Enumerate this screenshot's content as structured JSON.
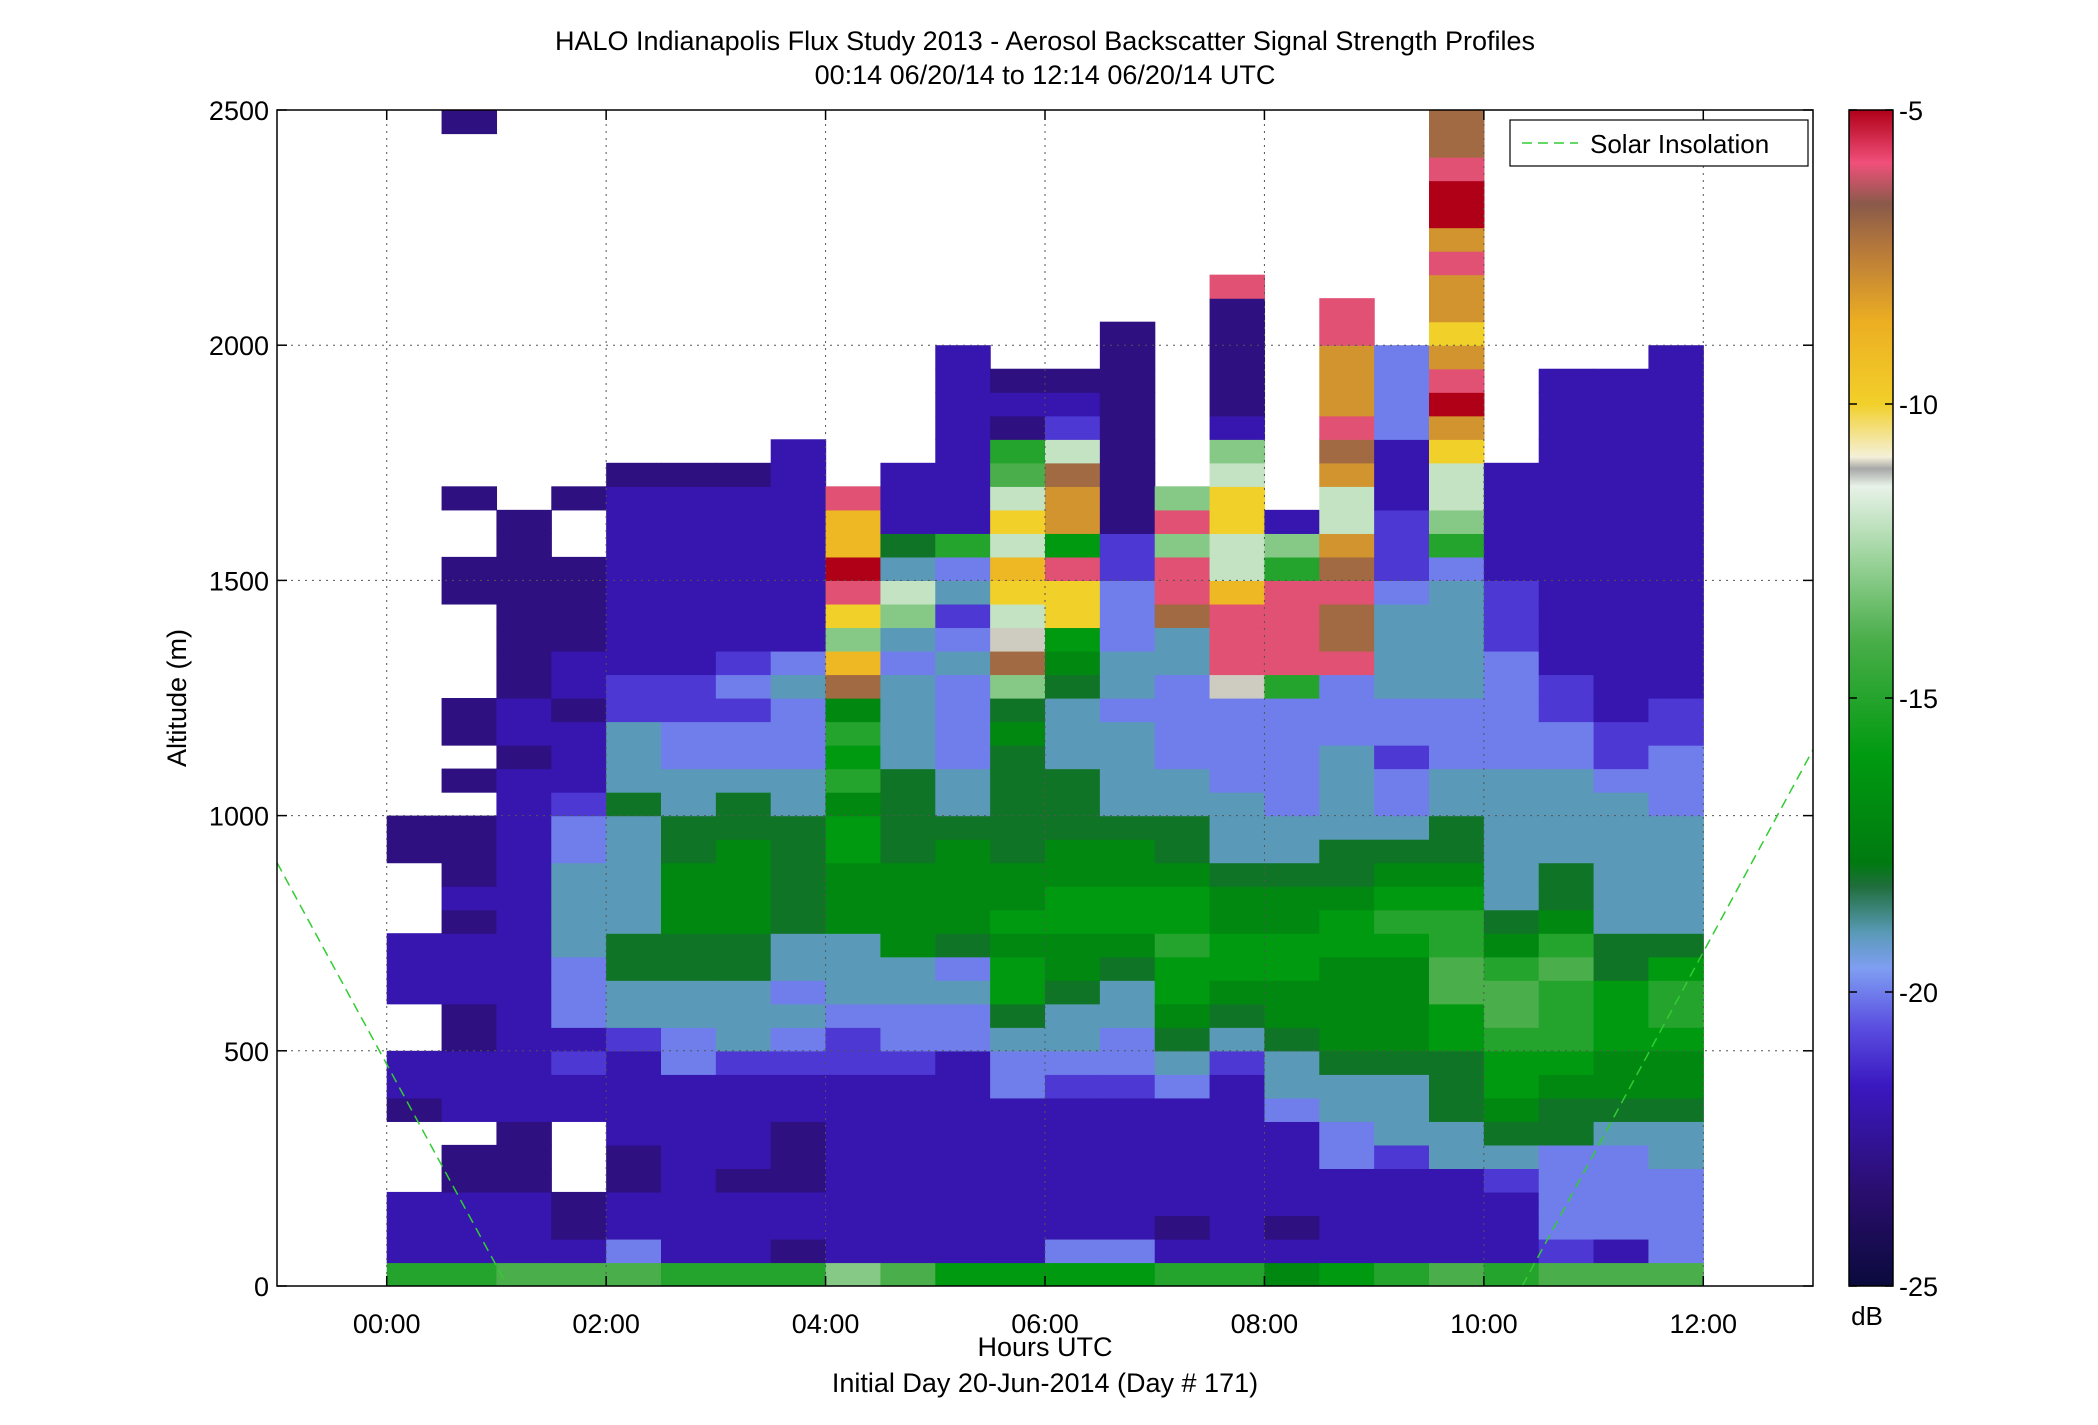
{
  "chart_data": {
    "type": "heatmap",
    "title": "HALO Indianapolis Flux Study 2013 - Aerosol Backscatter Signal Strength Profiles",
    "subtitle": "00:14 06/20/14 to 12:14 06/20/14  UTC",
    "xlabel": "Hours UTC",
    "xlabel2": "Initial Day 20-Jun-2014 (Day # 171)",
    "ylabel": "Altitude (m)",
    "xlim": [
      -1.0,
      13.0
    ],
    "ylim": [
      0,
      2500
    ],
    "x_ticks": [
      0,
      2,
      4,
      6,
      8,
      10,
      12
    ],
    "x_tick_labels": [
      "00:00",
      "02:00",
      "04:00",
      "06:00",
      "08:00",
      "10:00",
      "12:00"
    ],
    "y_ticks": [
      0,
      500,
      1000,
      1500,
      2000,
      2500
    ],
    "y_tick_labels": [
      "0",
      "500",
      "1000",
      "1500",
      "2000",
      "2500"
    ],
    "grid": true,
    "legend": {
      "position": "top-right",
      "entries": [
        "Solar Insolation"
      ]
    },
    "colorbar": {
      "label": "dB",
      "range": [
        -25,
        -5
      ],
      "ticks": [
        -5,
        -10,
        -15,
        -20,
        -25
      ],
      "tick_labels": [
        "-5",
        "-10",
        "-15",
        "-20",
        "-25"
      ],
      "stops": [
        [
          0.0,
          "#0a0a3c"
        ],
        [
          0.08,
          "#2a0e6e"
        ],
        [
          0.17,
          "#3a18c0"
        ],
        [
          0.22,
          "#5a4ee0"
        ],
        [
          0.27,
          "#7f9ef2"
        ],
        [
          0.3,
          "#5a9ab8"
        ],
        [
          0.34,
          "#1f6e3c"
        ],
        [
          0.36,
          "#007a10"
        ],
        [
          0.45,
          "#009a10"
        ],
        [
          0.55,
          "#4aae4a"
        ],
        [
          0.62,
          "#9ed49e"
        ],
        [
          0.68,
          "#e8f2e8"
        ],
        [
          0.695,
          "#a8a8a8"
        ],
        [
          0.705,
          "#f4f0d8"
        ],
        [
          0.75,
          "#f2d02a"
        ],
        [
          0.82,
          "#ecae22"
        ],
        [
          0.88,
          "#b87a3a"
        ],
        [
          0.92,
          "#8a5a4a"
        ],
        [
          0.955,
          "#f0507a"
        ],
        [
          1.0,
          "#b00018"
        ]
      ]
    },
    "solar_insolation": {
      "name": "Solar Insolation",
      "color": "#33cc33",
      "segments": [
        {
          "x": [
            -1.0,
            1.1
          ],
          "y": [
            900,
            0
          ]
        },
        {
          "x": [
            10.35,
            13.0
          ],
          "y": [
            0,
            1140
          ]
        }
      ]
    },
    "x_step_hours": 0.5,
    "y_bin_m": 50,
    "columns": [
      {
        "x": 0.25,
        "values": [
          -15,
          -22,
          -22,
          -22,
          null,
          null,
          null,
          -23,
          -22,
          -22,
          null,
          null,
          -22,
          -22,
          -22,
          null,
          null,
          null,
          -23,
          -23
        ]
      },
      {
        "x": 0.75,
        "values": [
          -15,
          -22,
          -22,
          -22,
          -23,
          -23,
          null,
          -22,
          -22,
          -22,
          -23,
          -23,
          -22,
          -22,
          -22,
          -23,
          -22,
          -23,
          -23,
          -23,
          null,
          -23,
          null,
          -23,
          -23,
          null,
          null,
          null,
          null,
          -23,
          -23,
          null,
          null,
          -23,
          null,
          null,
          null,
          null,
          null,
          null,
          null,
          null,
          null,
          null,
          null,
          null,
          null,
          null,
          null,
          -23
        ]
      },
      {
        "x": 1.25,
        "values": [
          -14,
          -22,
          -22,
          -22,
          -23,
          -23,
          -23,
          -22,
          -22,
          -22,
          -22,
          -22,
          -22,
          -22,
          -22,
          -22,
          -22,
          -22,
          -22,
          -22,
          -22,
          -22,
          -23,
          -22,
          -22,
          -23,
          -23,
          -23,
          -23,
          -23,
          -23,
          -23,
          -23
        ]
      },
      {
        "x": 1.75,
        "values": [
          -14,
          -22,
          -23,
          -23,
          null,
          null,
          null,
          -22,
          -22,
          -21,
          -22,
          -20,
          -20,
          -20,
          -19,
          -19,
          -19,
          -19,
          -20,
          -20,
          -21,
          -22,
          -22,
          -22,
          -23,
          -22,
          -22,
          -23,
          -23,
          -23,
          -23,
          null,
          null,
          -23
        ]
      },
      {
        "x": 2.25,
        "values": [
          -14,
          -20,
          -22,
          -22,
          -23,
          -23,
          -22,
          -22,
          -22,
          -22,
          -21,
          -19,
          -19,
          -18,
          -18,
          -19,
          -19,
          -19,
          -19,
          -19,
          -18,
          -19,
          -19,
          -19,
          -21,
          -21,
          -22,
          -22,
          -22,
          -22,
          -22,
          -22,
          -22,
          -22,
          -23
        ]
      },
      {
        "x": 2.75,
        "values": [
          -15,
          -22,
          -22,
          -22,
          -22,
          -22,
          -22,
          -22,
          -22,
          -20,
          -20,
          -19,
          -19,
          -18,
          -18,
          -17,
          -17,
          -17,
          -18,
          -18,
          -19,
          -19,
          -20,
          -20,
          -21,
          -21,
          -22,
          -22,
          -22,
          -22,
          -22,
          -22,
          -22,
          -22,
          -23
        ]
      },
      {
        "x": 3.25,
        "values": [
          -15,
          -22,
          -22,
          -22,
          -23,
          -22,
          -22,
          -22,
          -22,
          -21,
          -19,
          -19,
          -19,
          -18,
          -18,
          -17,
          -17,
          -17,
          -17,
          -18,
          -18,
          -19,
          -20,
          -20,
          -21,
          -20,
          -21,
          -22,
          -22,
          -22,
          -22,
          -22,
          -22,
          -22,
          -23
        ]
      },
      {
        "x": 3.75,
        "values": [
          -15,
          -23,
          -22,
          -22,
          -23,
          -23,
          -23,
          -22,
          -22,
          -21,
          -20,
          -19,
          -20,
          -19,
          -19,
          -18,
          -18,
          -18,
          -18,
          -18,
          -19,
          -19,
          -20,
          -20,
          -20,
          -19,
          -20,
          -22,
          -22,
          -22,
          -22,
          -22,
          -22,
          -22,
          -22,
          -22
        ]
      },
      {
        "x": 4.25,
        "values": [
          -13,
          -22,
          -22,
          -22,
          -22,
          -22,
          -22,
          -22,
          -22,
          -21,
          -21,
          -20,
          -19,
          -19,
          -19,
          -17,
          -17,
          -17,
          -16,
          -16,
          -17,
          -15,
          -16,
          -15,
          -17,
          -7,
          -9,
          -13,
          -10,
          -6,
          -5,
          -9,
          -9,
          -6
        ]
      },
      {
        "x": 4.75,
        "values": [
          -14,
          -22,
          -22,
          -22,
          -22,
          -22,
          -22,
          -22,
          -22,
          -21,
          -20,
          -20,
          -19,
          -19,
          -17,
          -17,
          -17,
          -17,
          -18,
          -18,
          -18,
          -18,
          -19,
          -19,
          -19,
          -19,
          -20,
          -19,
          -13,
          -12,
          -19,
          -18,
          -22,
          -22,
          -22
        ]
      },
      {
        "x": 5.25,
        "values": [
          -16,
          -22,
          -22,
          -22,
          -22,
          -22,
          -22,
          -22,
          -22,
          -22,
          -20,
          -20,
          -19,
          -20,
          -18,
          -17,
          -17,
          -17,
          -17,
          -18,
          -19,
          -19,
          -20,
          -20,
          -20,
          -20,
          -19,
          -20,
          -21,
          -19,
          -20,
          -15,
          -22,
          -22,
          -22,
          -22,
          -22,
          -22,
          -22,
          -22
        ]
      },
      {
        "x": 5.75,
        "values": [
          -16,
          -22,
          -22,
          -22,
          -22,
          -22,
          -22,
          -22,
          -20,
          -20,
          -19,
          -18,
          -16,
          -16,
          -17,
          -16,
          -17,
          -17,
          -18,
          -18,
          -18,
          -18,
          -18,
          -17,
          -18,
          -13,
          -7,
          -11,
          -12,
          -10,
          -9,
          -12,
          -10,
          -12,
          -14,
          -15,
          -23,
          -22,
          -23
        ]
      },
      {
        "x": 6.25,
        "values": [
          -16,
          -20,
          -22,
          -22,
          -22,
          -22,
          -22,
          -22,
          -21,
          -20,
          -19,
          -19,
          -18,
          -17,
          -17,
          -16,
          -16,
          -17,
          -17,
          -18,
          -18,
          -18,
          -19,
          -19,
          -19,
          -18,
          -17,
          -16,
          -10,
          -10,
          -6,
          -16,
          -8,
          -8,
          -7,
          -12,
          -21,
          -22,
          -23
        ]
      },
      {
        "x": 6.75,
        "values": [
          -16,
          -20,
          -22,
          -22,
          -22,
          -22,
          -22,
          -22,
          -21,
          -20,
          -20,
          -19,
          -19,
          -18,
          -17,
          -16,
          -16,
          -17,
          -17,
          -18,
          -19,
          -19,
          -19,
          -19,
          -20,
          -19,
          -19,
          -20,
          -20,
          -20,
          -21,
          -21,
          -23,
          -23,
          -23,
          -23,
          -23,
          -23,
          -23,
          -23,
          -23
        ]
      },
      {
        "x": 7.25,
        "values": [
          -15,
          -22,
          -23,
          -22,
          -22,
          -22,
          -22,
          -22,
          -20,
          -19,
          -18,
          -17,
          -16,
          -16,
          -15,
          -16,
          -16,
          -17,
          -18,
          -18,
          -19,
          -19,
          -20,
          -20,
          -20,
          -20,
          -19,
          -19,
          -7,
          -6,
          -6,
          -13,
          -6,
          -13
        ]
      },
      {
        "x": 7.75,
        "values": [
          -15,
          -22,
          -22,
          -22,
          -22,
          -22,
          -22,
          -22,
          -22,
          -21,
          -19,
          -18,
          -17,
          -16,
          -16,
          -17,
          -17,
          -18,
          -19,
          -19,
          -19,
          -20,
          -20,
          -20,
          -20,
          -11,
          -6,
          -6,
          -6,
          -9,
          -12,
          -12,
          -10,
          -10,
          -12,
          -13,
          -22,
          -23,
          -23,
          -23,
          -23,
          -23,
          -6
        ]
      },
      {
        "x": 8.25,
        "values": [
          -17,
          -22,
          -23,
          -22,
          -22,
          -22,
          -22,
          -20,
          -19,
          -19,
          -18,
          -17,
          -17,
          -16,
          -16,
          -17,
          -17,
          -18,
          -19,
          -19,
          -20,
          -20,
          -20,
          -20,
          -20,
          -15,
          -6,
          -6,
          -6,
          -6,
          -15,
          -13,
          -22
        ]
      },
      {
        "x": 8.75,
        "values": [
          -16,
          -22,
          -22,
          -22,
          -22,
          -20,
          -20,
          -19,
          -19,
          -18,
          -17,
          -17,
          -17,
          -17,
          -16,
          -16,
          -17,
          -18,
          -18,
          -19,
          -19,
          -19,
          -19,
          -20,
          -20,
          -20,
          -6,
          -7,
          -7,
          -6,
          -7,
          -8,
          -12,
          -12,
          -8,
          -7,
          -6,
          -8,
          -8,
          -8,
          -6,
          -6
        ]
      },
      {
        "x": 9.25,
        "values": [
          -15,
          -22,
          -22,
          -22,
          -22,
          -21,
          -19,
          -19,
          -19,
          -18,
          -17,
          -17,
          -17,
          -17,
          -16,
          -15,
          -16,
          -17,
          -18,
          -19,
          -20,
          -20,
          -21,
          -20,
          -20,
          -19,
          -19,
          -19,
          -19,
          -20,
          -21,
          -21,
          -21,
          -22,
          -22,
          -22,
          -20,
          -20,
          -20,
          -20
        ]
      },
      {
        "x": 9.75,
        "values": [
          -14,
          -22,
          -22,
          -22,
          -22,
          -19,
          -19,
          -18,
          -18,
          -18,
          -16,
          -16,
          -14,
          -14,
          -15,
          -15,
          -16,
          -17,
          -18,
          -18,
          -19,
          -19,
          -20,
          -20,
          -20,
          -19,
          -19,
          -19,
          -19,
          -19,
          -20,
          -15,
          -13,
          -12,
          -12,
          -10,
          -8,
          -5,
          -6,
          -8,
          -10,
          -8,
          -8,
          -6,
          -8,
          -5,
          -5,
          -6,
          -7,
          -7
        ]
      },
      {
        "x": 10.25,
        "values": [
          -15,
          -22,
          -22,
          -22,
          -21,
          -19,
          -18,
          -17,
          -16,
          -16,
          -15,
          -14,
          -14,
          -15,
          -17,
          -18,
          -19,
          -19,
          -19,
          -19,
          -19,
          -19,
          -20,
          -20,
          -20,
          -20,
          -20,
          -21,
          -21,
          -21,
          -22,
          -22,
          -22,
          -22,
          -22
        ]
      },
      {
        "x": 10.75,
        "values": [
          -14,
          -21,
          -20,
          -20,
          -20,
          -20,
          -18,
          -18,
          -17,
          -16,
          -15,
          -15,
          -15,
          -14,
          -15,
          -17,
          -18,
          -18,
          -19,
          -19,
          -19,
          -19,
          -20,
          -20,
          -21,
          -21,
          -22,
          -22,
          -22,
          -22,
          -22,
          -22,
          -22,
          -22,
          -22,
          -22,
          -22,
          -22,
          -22
        ]
      },
      {
        "x": 11.25,
        "values": [
          -14,
          -22,
          -20,
          -20,
          -20,
          -20,
          -19,
          -18,
          -17,
          -17,
          -16,
          -16,
          -16,
          -18,
          -18,
          -19,
          -19,
          -19,
          -19,
          -19,
          -19,
          -20,
          -21,
          -21,
          -22,
          -22,
          -22,
          -22,
          -22,
          -22,
          -22,
          -22,
          -22,
          -22,
          -22,
          -22,
          -22,
          -22,
          -22
        ]
      },
      {
        "x": 11.75,
        "values": [
          -14,
          -20,
          -20,
          -20,
          -20,
          -19,
          -19,
          -18,
          -17,
          -17,
          -16,
          -15,
          -15,
          -16,
          -18,
          -19,
          -19,
          -19,
          -19,
          -19,
          -20,
          -20,
          -20,
          -21,
          -21,
          -22,
          -22,
          -22,
          -22,
          -22,
          -22,
          -22,
          -22,
          -22,
          -22,
          -22,
          -22,
          -22,
          -22,
          -22
        ]
      }
    ]
  }
}
